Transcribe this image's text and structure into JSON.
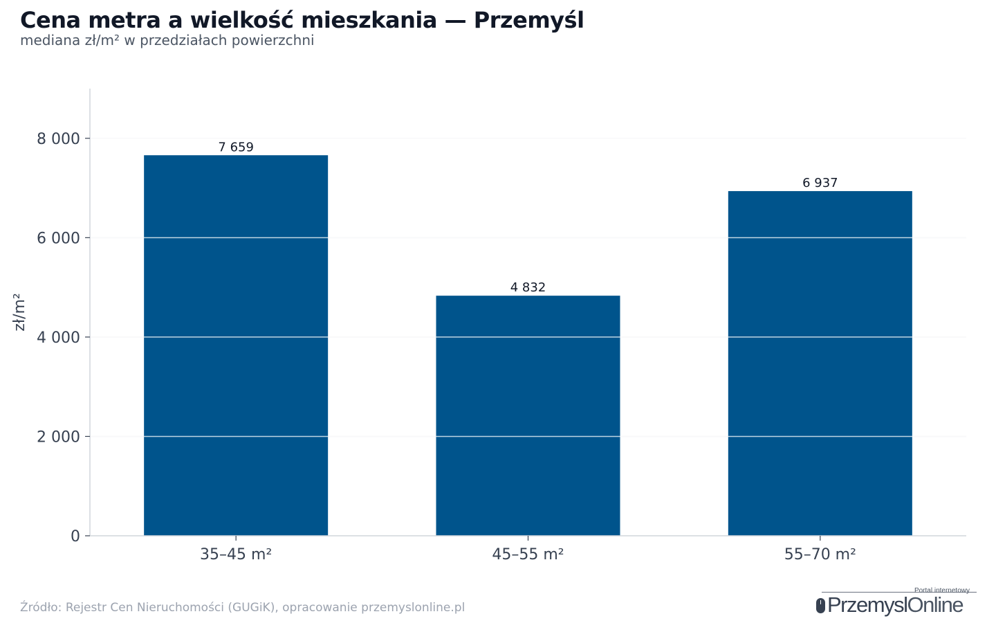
{
  "header": {
    "title": "Cena metra a wielkość mieszkania — Przemyśl",
    "subtitle": "mediana zł/m² w przedziałach powierzchni"
  },
  "footer": {
    "source": "Źródło: Rejestr Cen Nieruchomości (GUGiK), opracowanie przemyslonline.pl"
  },
  "logo": {
    "tagline": "Portal internetowy",
    "name_part1": "Przemysl",
    "name_part2": "Online"
  },
  "colors": {
    "bar": "#00548c",
    "grid": "#e5e7eb",
    "axis": "#d1d5db",
    "text": "#374151"
  },
  "chart_data": {
    "type": "bar",
    "title": "Cena metra a wielkość mieszkania — Przemyśl",
    "subtitle": "mediana zł/m² w przedziałach powierzchni",
    "xlabel": "",
    "ylabel": "zł/m²",
    "categories": [
      "35–45 m²",
      "45–55 m²",
      "55–70 m²"
    ],
    "values": [
      7659,
      4832,
      6937
    ],
    "value_labels": [
      "7 659",
      "4 832",
      "6 937"
    ],
    "ylim": [
      0,
      9000
    ],
    "yticks": [
      0,
      2000,
      4000,
      6000,
      8000
    ],
    "ytick_labels": [
      "0",
      "2 000",
      "4 000",
      "6 000",
      "8 000"
    ],
    "grid": "horizontal",
    "legend": "none"
  }
}
